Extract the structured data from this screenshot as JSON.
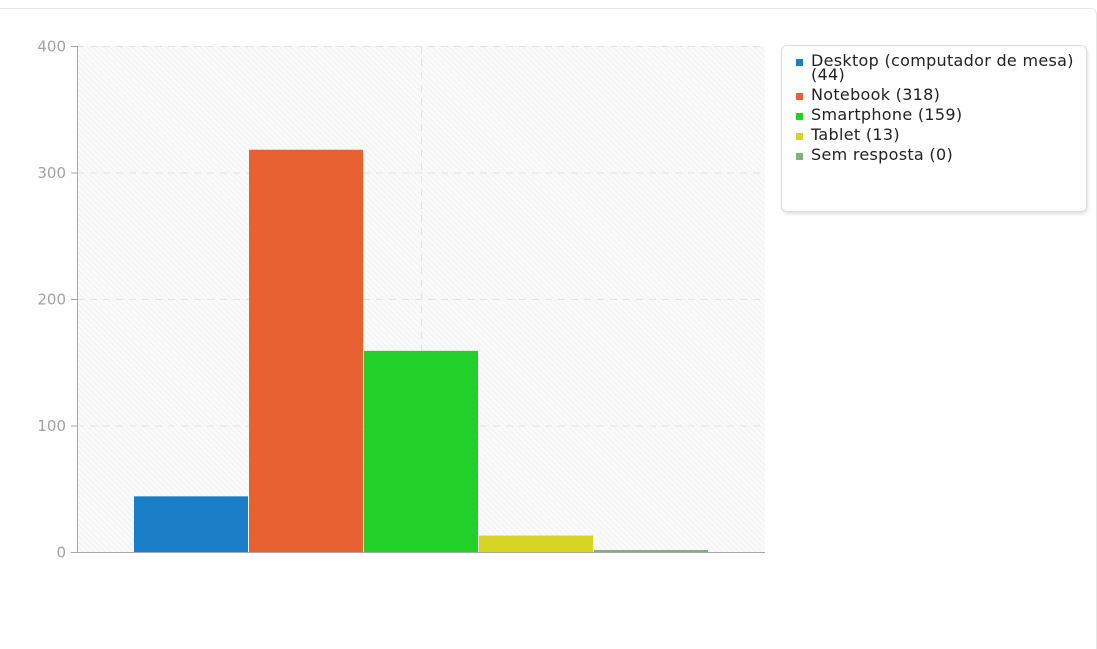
{
  "chart_data": {
    "type": "bar",
    "categories": [
      "Desktop (computador de mesa)",
      "Notebook",
      "Smartphone",
      "Tablet",
      "Sem resposta"
    ],
    "values": [
      44,
      318,
      159,
      13,
      0
    ],
    "colors": [
      "#1a7ec7",
      "#e86133",
      "#22d02a",
      "#d6d323",
      "#7fb27a"
    ],
    "ylim": [
      0,
      400
    ],
    "yticks": [
      0,
      100,
      200,
      300,
      400
    ],
    "title": "",
    "xlabel": "",
    "ylabel": "",
    "grid": true,
    "legend_position": "top-right"
  },
  "legend": {
    "items": [
      {
        "label": "Desktop (computador de mesa) (44)",
        "color": "#1a7ec7"
      },
      {
        "label": "Notebook (318)",
        "color": "#e86133"
      },
      {
        "label": "Smartphone (159)",
        "color": "#22d02a"
      },
      {
        "label": "Tablet (13)",
        "color": "#d6d323"
      },
      {
        "label": "Sem resposta (0)",
        "color": "#7fb27a"
      }
    ]
  }
}
